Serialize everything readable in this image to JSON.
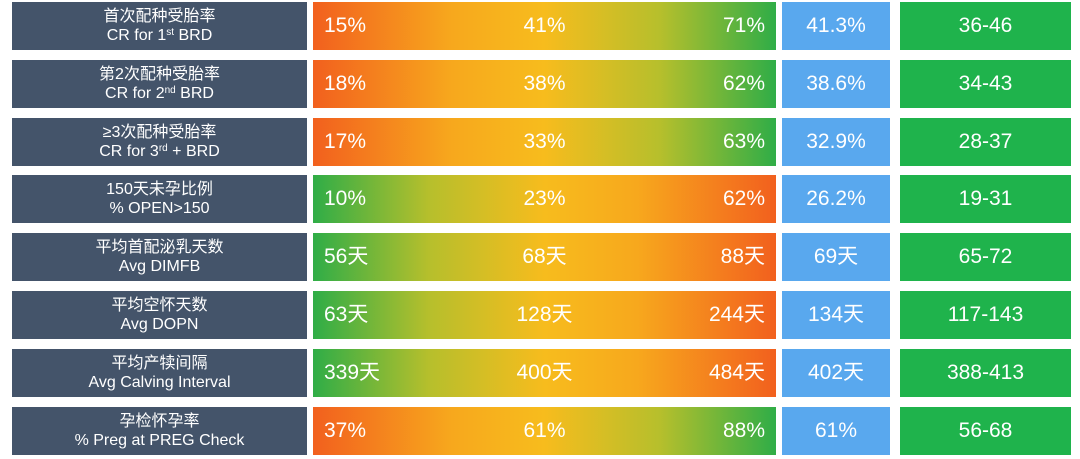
{
  "colors": {
    "label_bg": "#44546a",
    "avg_bg": "#59a8ee",
    "range_bg": "#1fb34c",
    "gradient_orange": "#f2601e",
    "gradient_yellow": "#f7bc1d",
    "gradient_green": "#2fad47"
  },
  "chart_data": {
    "type": "table",
    "columns": [],
    "rows": [
      {
        "label_cn": "首次配种受胎率",
        "label_en": [
          "CR for 1",
          "st",
          " BRD"
        ],
        "gradient": "orange-green",
        "low": "15%",
        "mid": "41%",
        "high": "71%",
        "avg": "41.3%",
        "range": "36-46"
      },
      {
        "label_cn": "第2次配种受胎率",
        "label_en": [
          "CR for 2",
          "nd",
          " BRD"
        ],
        "gradient": "orange-green",
        "low": "18%",
        "mid": "38%",
        "high": "62%",
        "avg": "38.6%",
        "range": "34-43"
      },
      {
        "label_cn": "≥3次配种受胎率",
        "label_en": [
          "CR for 3",
          "rd",
          " + BRD"
        ],
        "gradient": "orange-green",
        "low": "17%",
        "mid": "33%",
        "high": "63%",
        "avg": "32.9%",
        "range": "28-37"
      },
      {
        "label_cn": "150天未孕比例",
        "label_en": [
          "% OPEN>150",
          "",
          ""
        ],
        "gradient": "green-orange",
        "low": "10%",
        "mid": "23%",
        "high": "62%",
        "avg": "26.2%",
        "range": "19-31"
      },
      {
        "label_cn": "平均首配泌乳天数",
        "label_en": [
          "Avg DIMFB",
          "",
          ""
        ],
        "gradient": "green-orange",
        "low": "56天",
        "mid": "68天",
        "high": "88天",
        "avg": "69天",
        "range": "65-72"
      },
      {
        "label_cn": "平均空怀天数",
        "label_en": [
          "Avg DOPN",
          "",
          ""
        ],
        "gradient": "green-orange",
        "low": "63天",
        "mid": "128天",
        "high": "244天",
        "avg": "134天",
        "range": "117-143"
      },
      {
        "label_cn": "平均产犊间隔",
        "label_en": [
          "Avg Calving Interval",
          "",
          ""
        ],
        "gradient": "green-orange",
        "low": "339天",
        "mid": "400天",
        "high": "484天",
        "avg": "402天",
        "range": "388-413"
      },
      {
        "label_cn": "孕检怀孕率",
        "label_en": [
          "% Preg at PREG Check",
          "",
          ""
        ],
        "gradient": "orange-green",
        "low": "37%",
        "mid": "61%",
        "high": "88%",
        "avg": "61%",
        "range": "56-68"
      }
    ]
  }
}
